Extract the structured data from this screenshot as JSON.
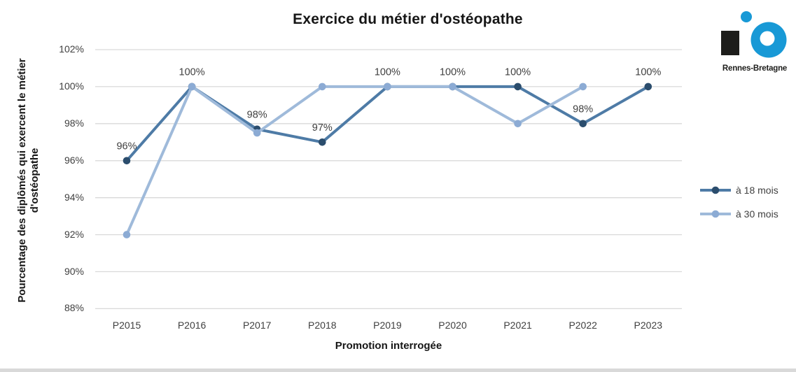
{
  "chart_data": {
    "type": "line",
    "title": "Exercice du métier d'ostéopathe",
    "xlabel": "Promotion interrogée",
    "ylabel_lines": [
      "Pourcentage des diplômés qui exercent le métier",
      "d'ostéopathe"
    ],
    "categories": [
      "P2015",
      "P2016",
      "P2017",
      "P2018",
      "P2019",
      "P2020",
      "P2021",
      "P2022",
      "P2023"
    ],
    "y_ticks": [
      "102%",
      "100%",
      "98%",
      "96%",
      "94%",
      "92%",
      "90%",
      "88%"
    ],
    "ylim": [
      88,
      102
    ],
    "grid": true,
    "grid_color": "#d9d9d9",
    "tick_color": "#3f3f3f",
    "legend_position": "right",
    "series": [
      {
        "name": "à 18 mois",
        "color": "#4e7ba6",
        "marker_color": "#2b4d6d",
        "values": [
          96,
          100,
          97.7,
          97,
          100,
          100,
          100,
          98,
          100
        ],
        "labels": [
          "96%",
          "100%",
          "98%",
          "97%",
          "100%",
          "100%",
          "100%",
          "98%",
          "100%"
        ]
      },
      {
        "name": "à 30 mois",
        "color": "#9fbada",
        "marker_color": "#8cabd4",
        "values": [
          92,
          100,
          97.5,
          100,
          100,
          100,
          98,
          100,
          null
        ],
        "labels": [
          "",
          "",
          "",
          "",
          "",
          "",
          "",
          "",
          ""
        ]
      }
    ]
  },
  "logo": {
    "text": "Rennes-Bretagne",
    "blue": "#1899d6",
    "black": "#1d1d1b"
  }
}
